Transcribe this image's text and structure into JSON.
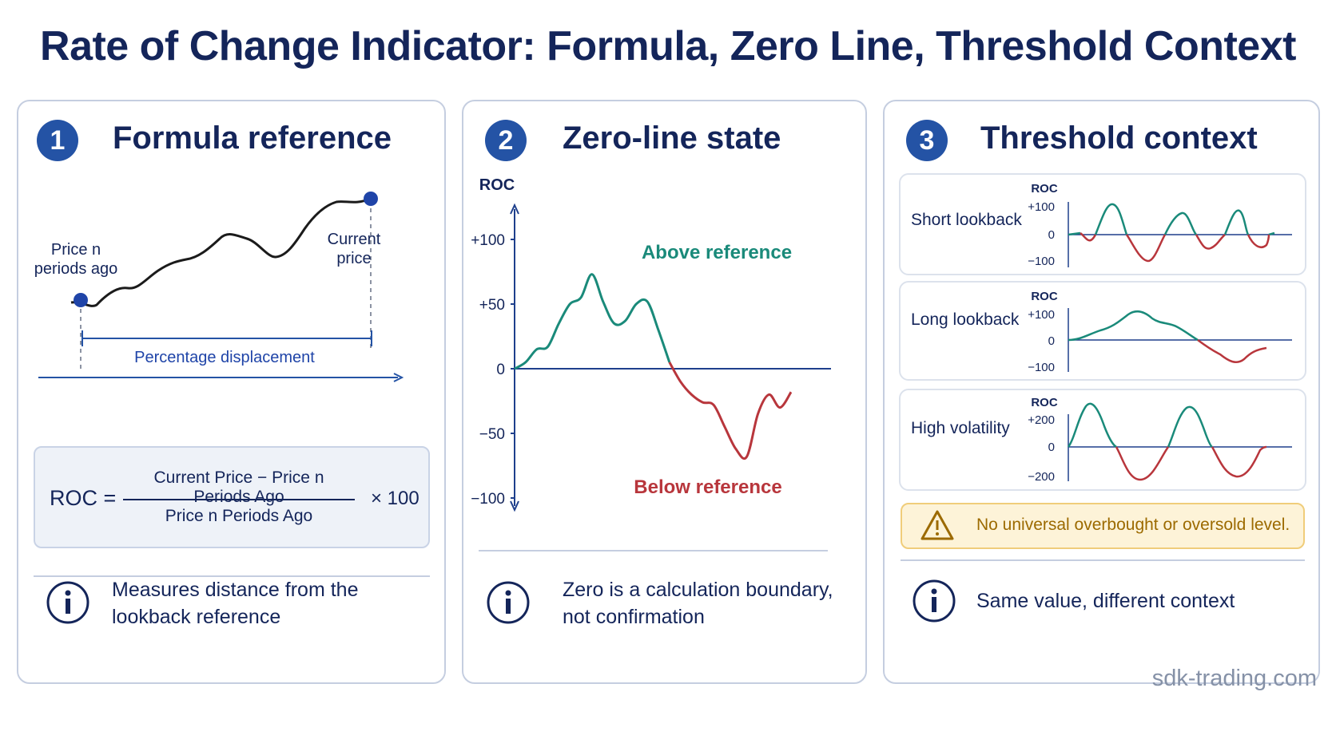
{
  "page": {
    "title": "Rate of Change Indicator: Formula, Zero Line, Threshold Context",
    "footer": "sdk-trading.com"
  },
  "colors": {
    "navy": "#14255a",
    "accent_blue": "#2453a5",
    "teal": "#1a8a7a",
    "red": "#b8363c",
    "warning_bg": "#fdf3d8",
    "warning_text": "#9c6a00",
    "footer_gray": "#8591a7"
  },
  "panels": [
    {
      "number": "1",
      "title": "Formula reference",
      "diagram": {
        "start_label_line1": "Price n",
        "start_label_line2": "periods ago",
        "end_label_line1": "Current",
        "end_label_line2": "price",
        "span_label": "Percentage displacement"
      },
      "formula": {
        "lhs": "ROC =",
        "numerator": "Current Price − Price n Periods Ago",
        "denominator": "Price n Periods Ago",
        "multiplier": "× 100"
      },
      "note_line1": "Measures distance from the",
      "note_line2": "lookback reference",
      "note_icon": "info-icon"
    },
    {
      "number": "2",
      "title": "Zero-line state",
      "chart": {
        "ylabel": "ROC",
        "ticks": [
          "+100",
          "+50",
          "0",
          "−50",
          "−100"
        ],
        "above_label": "Above reference",
        "below_label": "Below reference"
      },
      "note_line1": "Zero is a calculation boundary,",
      "note_line2": "not confirmation",
      "note_icon": "info-icon"
    },
    {
      "number": "3",
      "title": "Threshold context",
      "cards": [
        {
          "label": "Short lookback",
          "axis_title": "ROC",
          "tick_top": "+100",
          "tick_mid": "0",
          "tick_bottom": "−100"
        },
        {
          "label": "Long lookback",
          "axis_title": "ROC",
          "tick_top": "+100",
          "tick_mid": "0",
          "tick_bottom": "−100"
        },
        {
          "label": "High volatility",
          "axis_title": "ROC",
          "tick_top": "+200",
          "tick_mid": "0",
          "tick_bottom": "−200"
        }
      ],
      "warning": {
        "text": "No universal overbought or oversold level.",
        "icon": "warning-icon"
      },
      "note_line1": "Same value, different context",
      "note_icon": "info-icon"
    }
  ],
  "chart_data": {
    "type": "line",
    "title": "",
    "xlabel": "",
    "ylabel": "ROC",
    "ylim": [
      -100,
      100
    ],
    "yticks": [
      100,
      50,
      0,
      -50,
      -100
    ],
    "x": [
      0,
      1,
      2,
      3,
      4,
      5,
      6,
      7,
      8,
      9,
      10,
      11,
      12,
      13,
      14,
      15,
      16,
      17,
      18,
      19,
      20,
      21,
      22,
      23,
      24,
      25
    ],
    "series": [
      {
        "values": [
          0,
          5,
          15,
          17,
          35,
          50,
          55,
          73,
          52,
          35,
          37,
          50,
          52,
          30,
          5,
          -10,
          -20,
          -26,
          -28,
          -45,
          -62,
          -68,
          -35,
          -20,
          -30,
          -18
        ]
      }
    ],
    "annotations": [
      "Above reference",
      "Below reference"
    ],
    "grid": false
  }
}
